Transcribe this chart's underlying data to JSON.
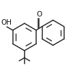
{
  "background": "#ffffff",
  "line_color": "#2a2a2a",
  "line_width": 1.1,
  "text_color": "#111111",
  "fig_width": 1.07,
  "fig_height": 1.08,
  "dpi": 100,
  "lcx": 0.32,
  "lcy": 0.5,
  "lr": 0.19,
  "lang": 30,
  "rcx": 0.72,
  "rcy": 0.56,
  "rr": 0.175,
  "rang": 30,
  "oh_fontsize": 7.5,
  "o_fontsize": 7.5
}
